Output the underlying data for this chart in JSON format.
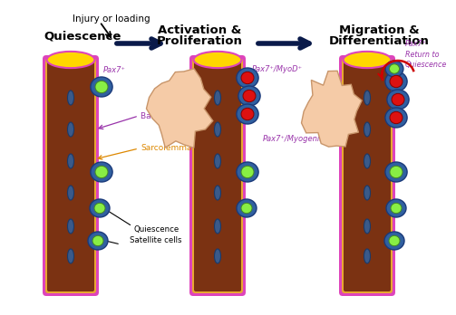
{
  "stage1_label": "Quiescence",
  "stage2_label": "Activation &\nProliferation",
  "stage3_label": "Migration &\nDifferentiation",
  "injury_loading": "Injury or loading",
  "injury_site": "injury",
  "label_pax7": "Pax7⁺",
  "label_basal": "Basal lamina",
  "label_sarcolemma": "Sarcolemma",
  "label_quiescence_sc": "Quiescence\nSatellite cells",
  "label_pax7_myod": "Pax7⁺/MyoD⁺",
  "label_pax7_myogenin": "Pax7⁺/Myogenin⁺",
  "label_pax7_return": "Pax7⁺\nReturn to\nQuiescence",
  "muscle_color": "#7B3212",
  "muscle_border_inner": "#E8A830",
  "muscle_border_outer": "#DD44BB",
  "muscle_top_color": "#FFD700",
  "nucleus_color": "#3a5a8a",
  "nucleus_border": "#1a3a6a",
  "sat_outer_color": "#3060a0",
  "sat_outer_border": "#1a3a7a",
  "sat_inner_color": "#88EE44",
  "sat_inner_border": "#448822",
  "act_inner_color": "#DD1111",
  "act_inner_border": "#880000",
  "injury_color": "#F5CBA7",
  "injury_border": "#C8956A",
  "arrow_dark": "#0a1a4a",
  "arrow_red": "#CC0000",
  "text_purple": "#9933AA",
  "text_orange": "#DD8800",
  "bg_color": "#ffffff"
}
